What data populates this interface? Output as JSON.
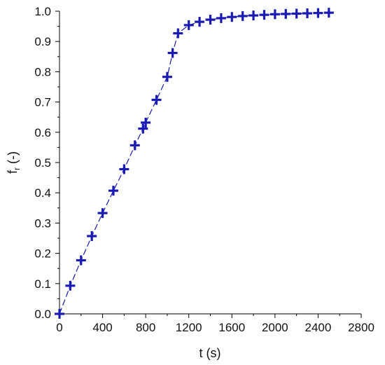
{
  "chart_data": {
    "type": "line",
    "xlabel": "t (s)",
    "ylabel": {
      "main": "f",
      "subscript": "r",
      "suffix": " (-)"
    },
    "xlim": [
      0,
      2800
    ],
    "ylim": [
      0,
      1.0
    ],
    "x_ticks": [
      0,
      400,
      800,
      1200,
      1600,
      2000,
      2400,
      2800
    ],
    "y_ticks": [
      0.0,
      0.1,
      0.2,
      0.3,
      0.4,
      0.5,
      0.6,
      0.7,
      0.8,
      0.9,
      1.0
    ],
    "x_tick_labels": [
      "0",
      "400",
      "800",
      "1200",
      "1600",
      "2000",
      "2400",
      "2800"
    ],
    "y_tick_labels": [
      "0.0",
      "0.1",
      "0.2",
      "0.3",
      "0.4",
      "0.5",
      "0.6",
      "0.7",
      "0.8",
      "0.9",
      "1.0"
    ],
    "grid": false,
    "marker": "plus",
    "line_style": "dashed",
    "series": [
      {
        "color": "#1a1ab4",
        "x": [
          0,
          100,
          200,
          300,
          400,
          500,
          600,
          700,
          775,
          800,
          900,
          1000,
          1050,
          1100,
          1200,
          1300,
          1400,
          1500,
          1600,
          1700,
          1800,
          1900,
          2000,
          2100,
          2200,
          2300,
          2400,
          2500
        ],
        "y": [
          0.0,
          0.093,
          0.177,
          0.257,
          0.333,
          0.407,
          0.478,
          0.557,
          0.612,
          0.632,
          0.707,
          0.783,
          0.862,
          0.927,
          0.954,
          0.965,
          0.972,
          0.977,
          0.981,
          0.984,
          0.986,
          0.988,
          0.99,
          0.991,
          0.992,
          0.993,
          0.994,
          0.995
        ]
      }
    ]
  }
}
